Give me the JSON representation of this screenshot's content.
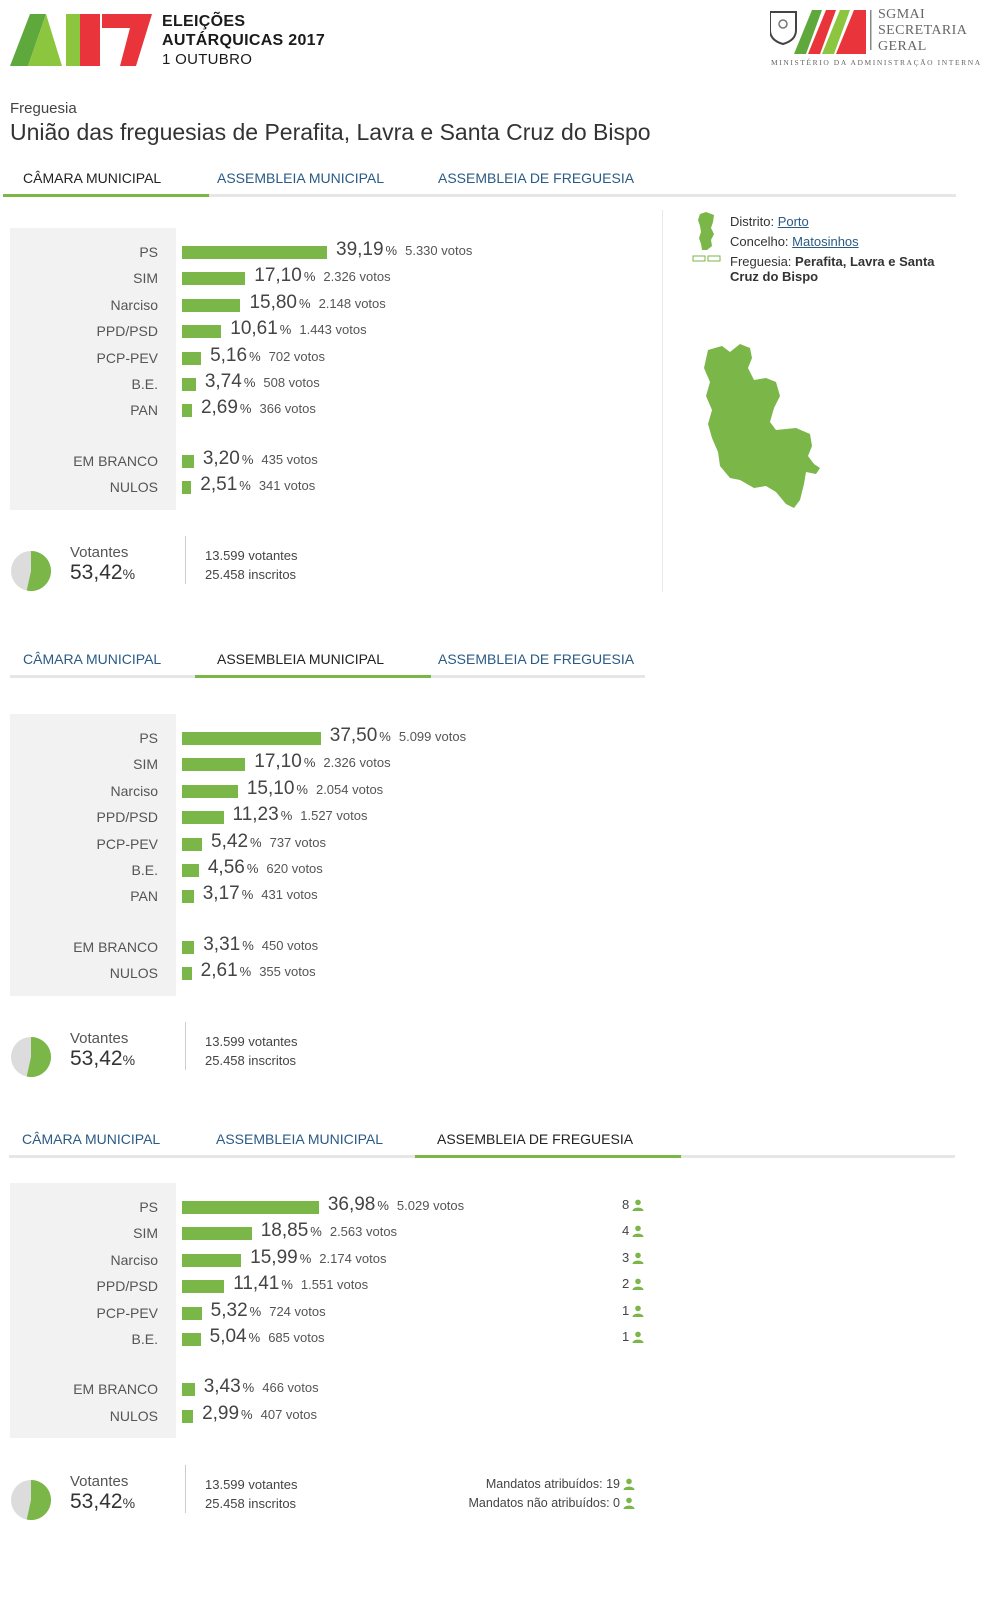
{
  "header": {
    "logo_line1": "ELEIÇÕES",
    "logo_line2": "AUTÁRQUICAS 2017",
    "logo_line3": "1 OUTUBRO",
    "sgmai_line1": "SGMAI",
    "sgmai_line2": "SECRETARIA",
    "sgmai_line3": "GERAL",
    "sgmai_sub": "MINISTÉRIO DA ADMINISTRAÇÃO INTERNA"
  },
  "freguesia": {
    "label": "Freguesia",
    "name": "União das freguesias de Perafita, Lavra e Santa Cruz do Bispo"
  },
  "tabs": {
    "camara": "CÂMARA MUNICIPAL",
    "assembleia_municipal": "ASSEMBLEIA MUNICIPAL",
    "assembleia_freguesia": "ASSEMBLEIA DE FREGUESIA"
  },
  "side": {
    "distrito_label": "Distrito:",
    "distrito": "Porto",
    "concelho_label": "Concelho:",
    "concelho": "Matosinhos",
    "freguesia_label": "Freguesia:",
    "freguesia": "Perafita, Lavra e Santa Cruz do Bispo"
  },
  "pct_sign": "%",
  "votos_suffix": "votos",
  "sections": [
    {
      "rows": [
        {
          "party": "PS",
          "pct": "39,19",
          "votos": "5.330"
        },
        {
          "party": "SIM",
          "pct": "17,10",
          "votos": "2.326"
        },
        {
          "party": "Narciso",
          "pct": "15,80",
          "votos": "2.148"
        },
        {
          "party": "PPD/PSD",
          "pct": "10,61",
          "votos": "1.443"
        },
        {
          "party": "PCP-PEV",
          "pct": "5,16",
          "votos": "702"
        },
        {
          "party": "B.E.",
          "pct": "3,74",
          "votos": "508"
        },
        {
          "party": "PAN",
          "pct": "2,69",
          "votos": "366"
        }
      ],
      "extra": [
        {
          "party": "EM BRANCO",
          "pct": "3,20",
          "votos": "435"
        },
        {
          "party": "NULOS",
          "pct": "2,51",
          "votos": "341"
        }
      ],
      "votantes": {
        "label": "Votantes",
        "pct": "53,42",
        "votantes": "13.599 votantes",
        "inscritos": "25.458 inscritos"
      }
    },
    {
      "rows": [
        {
          "party": "PS",
          "pct": "37,50",
          "votos": "5.099"
        },
        {
          "party": "SIM",
          "pct": "17,10",
          "votos": "2.326"
        },
        {
          "party": "Narciso",
          "pct": "15,10",
          "votos": "2.054"
        },
        {
          "party": "PPD/PSD",
          "pct": "11,23",
          "votos": "1.527"
        },
        {
          "party": "PCP-PEV",
          "pct": "5,42",
          "votos": "737"
        },
        {
          "party": "B.E.",
          "pct": "4,56",
          "votos": "620"
        },
        {
          "party": "PAN",
          "pct": "3,17",
          "votos": "431"
        }
      ],
      "extra": [
        {
          "party": "EM BRANCO",
          "pct": "3,31",
          "votos": "450"
        },
        {
          "party": "NULOS",
          "pct": "2,61",
          "votos": "355"
        }
      ],
      "votantes": {
        "label": "Votantes",
        "pct": "53,42",
        "votantes": "13.599 votantes",
        "inscritos": "25.458 inscritos"
      }
    },
    {
      "rows": [
        {
          "party": "PS",
          "pct": "36,98",
          "votos": "5.029",
          "mandatos": "8"
        },
        {
          "party": "SIM",
          "pct": "18,85",
          "votos": "2.563",
          "mandatos": "4"
        },
        {
          "party": "Narciso",
          "pct": "15,99",
          "votos": "2.174",
          "mandatos": "3"
        },
        {
          "party": "PPD/PSD",
          "pct": "11,41",
          "votos": "1.551",
          "mandatos": "2"
        },
        {
          "party": "PCP-PEV",
          "pct": "5,32",
          "votos": "724",
          "mandatos": "1"
        },
        {
          "party": "B.E.",
          "pct": "5,04",
          "votos": "685",
          "mandatos": "1"
        }
      ],
      "extra": [
        {
          "party": "EM BRANCO",
          "pct": "3,43",
          "votos": "466"
        },
        {
          "party": "NULOS",
          "pct": "2,99",
          "votos": "407"
        }
      ],
      "votantes": {
        "label": "Votantes",
        "pct": "53,42",
        "votantes": "13.599 votantes",
        "inscritos": "25.458 inscritos"
      },
      "mandatos": {
        "atribuidos": "Mandatos atribuídos: 19",
        "nao_atribuidos": "Mandatos não atribuídos: 0"
      }
    }
  ],
  "colors": {
    "accent": "#7ab648",
    "link": "#2a5a86"
  }
}
